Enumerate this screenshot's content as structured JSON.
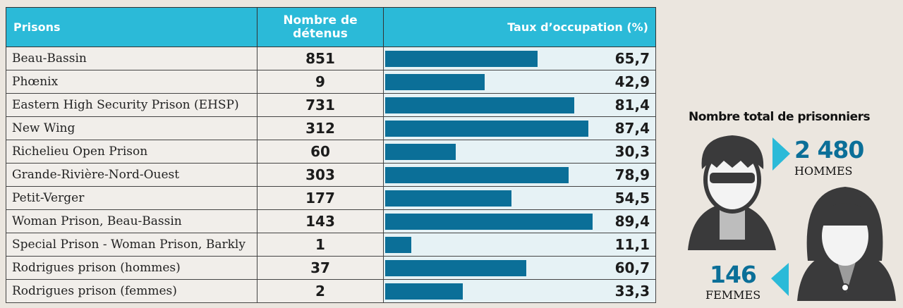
{
  "chart_data": {
    "type": "table",
    "headers": [
      "Prisons",
      "Nombre de détenus",
      "Taux d’occupation (%)"
    ],
    "rows": [
      {
        "name": "Beau-Bassin",
        "detenus": "851",
        "taux": 65.7,
        "taux_label": "65,7"
      },
      {
        "name": "Phœnix",
        "detenus": "9",
        "taux": 42.9,
        "taux_label": "42,9"
      },
      {
        "name": "Eastern High Security Prison (EHSP)",
        "detenus": "731",
        "taux": 81.4,
        "taux_label": "81,4"
      },
      {
        "name": "New Wing",
        "detenus": "312",
        "taux": 87.4,
        "taux_label": "87,4"
      },
      {
        "name": "Richelieu Open Prison",
        "detenus": "60",
        "taux": 30.3,
        "taux_label": "30,3"
      },
      {
        "name": "Grande-Rivière-Nord-Ouest",
        "detenus": "303",
        "taux": 78.9,
        "taux_label": "78,9"
      },
      {
        "name": "Petit-Verger",
        "detenus": "177",
        "taux": 54.5,
        "taux_label": "54,5"
      },
      {
        "name": "Woman Prison, Beau-Bassin",
        "detenus": "143",
        "taux": 89.4,
        "taux_label": "89,4"
      },
      {
        "name": "Special Prison - Woman Prison, Barkly",
        "detenus": "1",
        "taux": 11.1,
        "taux_label": "11,1"
      },
      {
        "name": "Rodrigues prison (hommes)",
        "detenus": "37",
        "taux": 60.7,
        "taux_label": "60,7"
      },
      {
        "name": "Rodrigues prison (femmes)",
        "detenus": "2",
        "taux": 33.3,
        "taux_label": "33,3"
      }
    ],
    "bar_max": 100,
    "bar_color": "#0b6f98"
  },
  "totals": {
    "title": "Nombre total de prisonniers",
    "hommes_count": "2 480",
    "hommes_label": "HOMMES",
    "femmes_count": "146",
    "femmes_label": "FEMMES"
  }
}
